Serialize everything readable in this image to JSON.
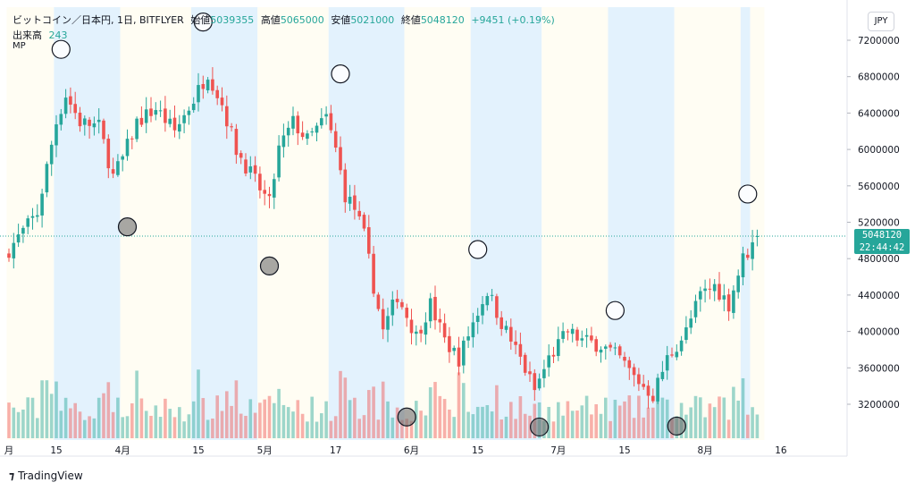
{
  "header": {
    "symbol": "ビットコイン／日本円, 1日, BITFLYER",
    "open_label": "始値",
    "open_value": "5039355",
    "high_label": "高値",
    "high_value": "5065000",
    "low_label": "安値",
    "low_value": "5021000",
    "close_label": "終値",
    "close_value": "5048120",
    "change": "+9451 (+0.19%)",
    "volume_label": "出来高",
    "volume_value": "243",
    "indicator": "MP"
  },
  "price_axis": {
    "currency": "JPY",
    "current_price": "5048120",
    "countdown": "22:44:42"
  },
  "brand": {
    "name": "TradingView"
  },
  "colors": {
    "up": "#26a69a",
    "down": "#ef5350",
    "band_blue": "#e3f2fd",
    "band_cream": "#fffdf3"
  },
  "chart_data": {
    "type": "candlestick",
    "ylim": [
      2900000,
      7400000
    ],
    "y_ticks": [
      3200000,
      3600000,
      4000000,
      4400000,
      4800000,
      5200000,
      5600000,
      6000000,
      6400000,
      6800000,
      7200000
    ],
    "x_tick_labels": [
      "月",
      "15",
      "4月",
      "15",
      "5月",
      "17",
      "6月",
      "15",
      "7月",
      "15",
      "8月",
      "16"
    ],
    "x_tick_day_index": [
      0,
      10,
      24,
      40,
      54,
      69,
      85,
      99,
      116,
      130,
      147,
      163
    ],
    "last_price_line": 5048120,
    "bands": [
      {
        "start": 0,
        "end": 10,
        "color": "cream"
      },
      {
        "start": 10,
        "end": 24,
        "color": "blue"
      },
      {
        "start": 24,
        "end": 39,
        "color": "cream"
      },
      {
        "start": 39,
        "end": 53,
        "color": "blue"
      },
      {
        "start": 53,
        "end": 68,
        "color": "cream"
      },
      {
        "start": 68,
        "end": 84,
        "color": "blue"
      },
      {
        "start": 84,
        "end": 98,
        "color": "cream"
      },
      {
        "start": 98,
        "end": 113,
        "color": "blue"
      },
      {
        "start": 113,
        "end": 127,
        "color": "cream"
      },
      {
        "start": 127,
        "end": 141,
        "color": "blue"
      },
      {
        "start": 141,
        "end": 155,
        "color": "cream"
      },
      {
        "start": 155,
        "end": 157,
        "color": "blue"
      },
      {
        "start": 157,
        "end": 160,
        "color": "cream"
      }
    ],
    "markers": [
      {
        "day": 11,
        "price": 7100000,
        "filled": false
      },
      {
        "day": 25,
        "price": 5150000,
        "filled": true
      },
      {
        "day": 41,
        "price": 7400000,
        "filled": false
      },
      {
        "day": 55,
        "price": 4720000,
        "filled": true
      },
      {
        "day": 70,
        "price": 6830000,
        "filled": false
      },
      {
        "day": 84,
        "price": 3060000,
        "filled": true
      },
      {
        "day": 99,
        "price": 4900000,
        "filled": false
      },
      {
        "day": 112,
        "price": 2950000,
        "filled": true
      },
      {
        "day": 128,
        "price": 4230000,
        "filled": false
      },
      {
        "day": 141,
        "price": 2960000,
        "filled": true
      },
      {
        "day": 156,
        "price": 5510000,
        "filled": false
      }
    ],
    "anchors": [
      [
        0,
        4900000
      ],
      [
        6,
        5300000
      ],
      [
        10,
        6300000
      ],
      [
        12,
        6600000
      ],
      [
        15,
        6300000
      ],
      [
        19,
        6250000
      ],
      [
        22,
        5700000
      ],
      [
        24,
        5900000
      ],
      [
        27,
        6300000
      ],
      [
        31,
        6450000
      ],
      [
        35,
        6200000
      ],
      [
        39,
        6550000
      ],
      [
        42,
        6850000
      ],
      [
        45,
        6500000
      ],
      [
        48,
        6000000
      ],
      [
        52,
        5650000
      ],
      [
        55,
        5400000
      ],
      [
        57,
        6000000
      ],
      [
        60,
        6300000
      ],
      [
        63,
        6100000
      ],
      [
        67,
        6350000
      ],
      [
        69,
        6000000
      ],
      [
        71,
        5500000
      ],
      [
        73,
        5350000
      ],
      [
        75,
        5050000
      ],
      [
        77,
        4500000
      ],
      [
        79,
        4000000
      ],
      [
        82,
        4400000
      ],
      [
        86,
        3950000
      ],
      [
        89,
        4300000
      ],
      [
        92,
        3900000
      ],
      [
        95,
        3700000
      ],
      [
        98,
        4100000
      ],
      [
        101,
        4450000
      ],
      [
        104,
        4100000
      ],
      [
        108,
        3700000
      ],
      [
        111,
        3350000
      ],
      [
        114,
        3700000
      ],
      [
        118,
        4000000
      ],
      [
        121,
        3900000
      ],
      [
        125,
        3850000
      ],
      [
        129,
        3700000
      ],
      [
        132,
        3500000
      ],
      [
        136,
        3300000
      ],
      [
        139,
        3700000
      ],
      [
        143,
        4000000
      ],
      [
        146,
        4400000
      ],
      [
        149,
        4500000
      ],
      [
        152,
        4300000
      ],
      [
        155,
        4800000
      ],
      [
        157,
        4950000
      ],
      [
        158,
        5048120
      ]
    ]
  }
}
